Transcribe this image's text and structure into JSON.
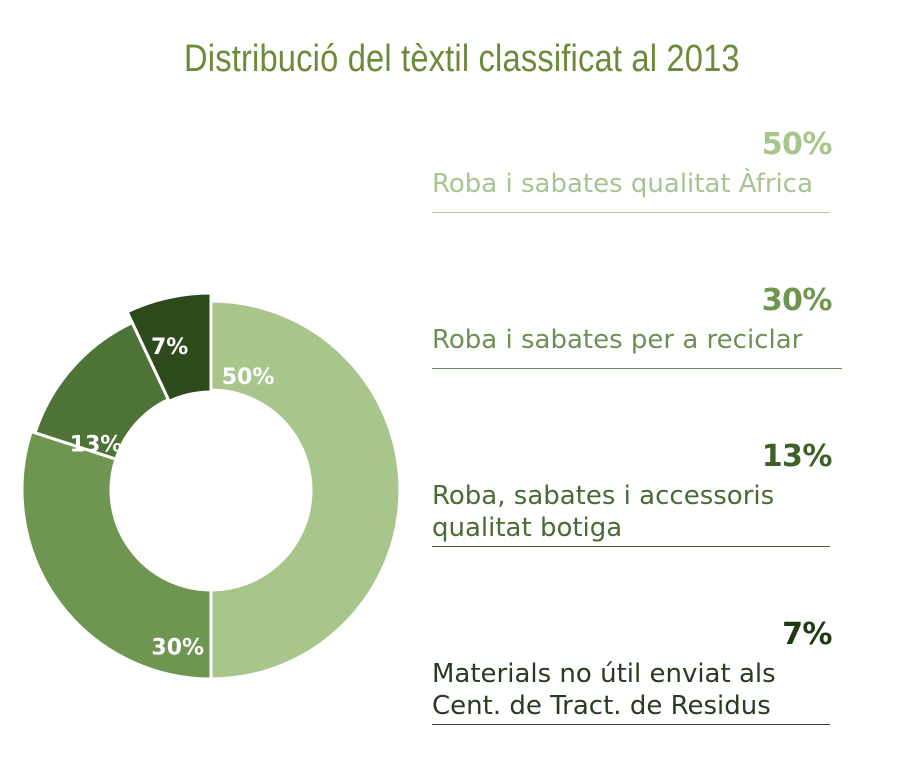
{
  "title": "Distribució del tèxtil classificat al 2013",
  "chart_data": {
    "type": "pie",
    "title": "Distribució del tèxtil classificat al 2013",
    "categories": [
      "Roba i sabates qualitat Àfrica",
      "Roba i sabates per a reciclar",
      "Roba, sabates i accessoris qualitat botiga",
      "Materials no útil enviat als Cent. de Tract. de Residus"
    ],
    "values": [
      50,
      30,
      13,
      7
    ],
    "slice_labels": [
      "50%",
      "30%",
      "13%",
      "7%"
    ],
    "colors": [
      "#a8c58c",
      "#6e9650",
      "#4e7336",
      "#2d4a1c"
    ],
    "donut": true
  },
  "legend": [
    {
      "percent": "50%",
      "text": "Roba i sabates qualitat Àfrica",
      "pct_color": "#a8c58c",
      "text_color": "#a9c493"
    },
    {
      "percent": "30%",
      "text": "Roba i sabates per a reciclar",
      "pct_color": "#6e9650",
      "text_color": "#6f9055"
    },
    {
      "percent": "13%",
      "text": "Roba, sabates i accessoris\nqualitat botiga",
      "pct_color": "#3f6128",
      "text_color": "#4a6a36"
    },
    {
      "percent": "7%",
      "text": "Materials no útil enviat als\nCent. de Tract. de Residus",
      "pct_color": "#1f3a12",
      "text_color": "#2b3a22"
    }
  ]
}
